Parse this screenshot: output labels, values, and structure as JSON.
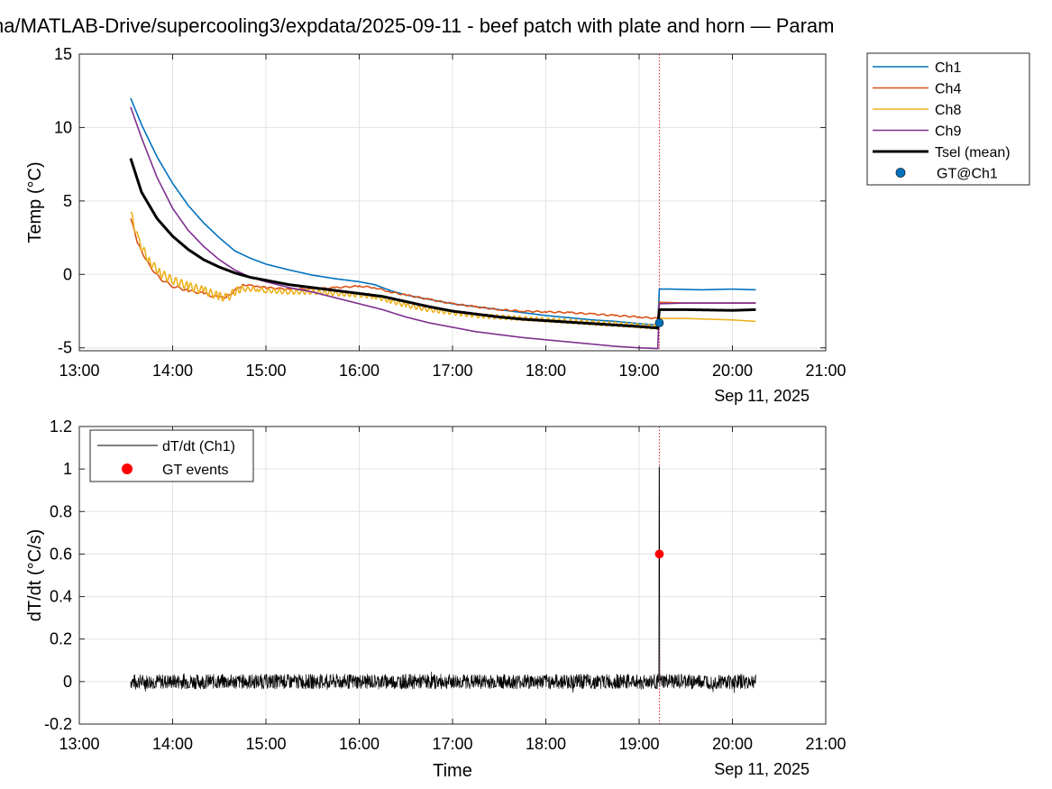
{
  "figure_title": "na/MATLAB-Drive/supercooling3/expdata/2025-09-11 - beef patch with plate and horn — Param",
  "chart_data": [
    {
      "type": "line",
      "ylabel": "Temp (°C)",
      "xlabel": "",
      "date_label": "Sep 11, 2025",
      "xlim": [
        "13:00",
        "21:00"
      ],
      "xticks": [
        "13:00",
        "14:00",
        "15:00",
        "16:00",
        "17:00",
        "18:00",
        "19:00",
        "20:00",
        "21:00"
      ],
      "ylim": [
        -5.2,
        15
      ],
      "yticks": [
        -5,
        0,
        5,
        10,
        15
      ],
      "grid": true,
      "legend_position": "outside-top-right",
      "event_time": "19:13",
      "series": [
        {
          "name": "Ch1",
          "color": "#0072BD",
          "width": 1.6,
          "points": [
            [
              "13:33",
              12.0
            ],
            [
              "13:40",
              10.2
            ],
            [
              "13:50",
              8.0
            ],
            [
              "14:00",
              6.2
            ],
            [
              "14:10",
              4.7
            ],
            [
              "14:20",
              3.5
            ],
            [
              "14:30",
              2.5
            ],
            [
              "14:40",
              1.6
            ],
            [
              "14:50",
              1.1
            ],
            [
              "15:00",
              0.7
            ],
            [
              "15:15",
              0.3
            ],
            [
              "15:30",
              -0.05
            ],
            [
              "15:45",
              -0.3
            ],
            [
              "16:00",
              -0.5
            ],
            [
              "16:10",
              -0.7
            ],
            [
              "16:20",
              -1.1
            ],
            [
              "16:30",
              -1.4
            ],
            [
              "16:45",
              -1.7
            ],
            [
              "17:00",
              -2.0
            ],
            [
              "17:15",
              -2.2
            ],
            [
              "17:30",
              -2.4
            ],
            [
              "17:45",
              -2.6
            ],
            [
              "18:00",
              -2.8
            ],
            [
              "18:15",
              -2.95
            ],
            [
              "18:30",
              -3.1
            ],
            [
              "18:45",
              -3.2
            ],
            [
              "19:00",
              -3.35
            ],
            [
              "19:12",
              -3.45
            ],
            [
              "19:13",
              -1.0
            ],
            [
              "19:20",
              -1.0
            ],
            [
              "19:40",
              -1.05
            ],
            [
              "20:00",
              -1.0
            ],
            [
              "20:15",
              -1.05
            ]
          ]
        },
        {
          "name": "Ch4",
          "color": "#D95319",
          "width": 1.6,
          "osc_amp": 0.08,
          "osc_period_min": 6,
          "points": [
            [
              "13:33",
              3.8
            ],
            [
              "13:38",
              2.0
            ],
            [
              "13:45",
              0.6
            ],
            [
              "13:52",
              -0.3
            ],
            [
              "14:00",
              -0.8
            ],
            [
              "14:10",
              -1.1
            ],
            [
              "14:20",
              -1.3
            ],
            [
              "14:30",
              -1.6
            ],
            [
              "14:35",
              -1.5
            ],
            [
              "14:45",
              -0.7
            ],
            [
              "14:55",
              -0.8
            ],
            [
              "15:00",
              -0.9
            ],
            [
              "15:15",
              -1.0
            ],
            [
              "15:30",
              -1.0
            ],
            [
              "15:45",
              -0.9
            ],
            [
              "16:00",
              -0.8
            ],
            [
              "16:10",
              -0.9
            ],
            [
              "16:20",
              -1.2
            ],
            [
              "16:30",
              -1.4
            ],
            [
              "16:45",
              -1.7
            ],
            [
              "17:00",
              -2.0
            ],
            [
              "17:15",
              -2.2
            ],
            [
              "17:30",
              -2.4
            ],
            [
              "17:45",
              -2.5
            ],
            [
              "18:00",
              -2.55
            ],
            [
              "18:15",
              -2.6
            ],
            [
              "18:30",
              -2.7
            ],
            [
              "18:45",
              -2.8
            ],
            [
              "19:00",
              -2.9
            ],
            [
              "19:12",
              -3.0
            ],
            [
              "19:13",
              -1.9
            ],
            [
              "19:30",
              -1.95
            ],
            [
              "20:00",
              -1.95
            ],
            [
              "20:15",
              -1.95
            ]
          ]
        },
        {
          "name": "Ch8",
          "color": "#EDB120",
          "width": 1.6,
          "osc_amp": 0.28,
          "osc_period_min": 3.5,
          "points": [
            [
              "13:33",
              4.2
            ],
            [
              "13:38",
              2.3
            ],
            [
              "13:45",
              0.9
            ],
            [
              "13:52",
              0.1
            ],
            [
              "14:00",
              -0.4
            ],
            [
              "14:10",
              -0.8
            ],
            [
              "14:20",
              -1.1
            ],
            [
              "14:30",
              -1.5
            ],
            [
              "14:35",
              -1.6
            ],
            [
              "14:42",
              -1.0
            ],
            [
              "14:55",
              -1.0
            ],
            [
              "15:00",
              -1.1
            ],
            [
              "15:15",
              -1.2
            ],
            [
              "15:30",
              -1.2
            ],
            [
              "15:45",
              -1.3
            ],
            [
              "16:00",
              -1.4
            ],
            [
              "16:10",
              -1.5
            ],
            [
              "16:20",
              -1.8
            ],
            [
              "16:30",
              -2.1
            ],
            [
              "16:45",
              -2.4
            ],
            [
              "17:00",
              -2.6
            ],
            [
              "17:15",
              -2.8
            ],
            [
              "17:30",
              -2.9
            ],
            [
              "17:45",
              -3.0
            ],
            [
              "18:00",
              -3.1
            ],
            [
              "18:15",
              -3.2
            ],
            [
              "18:30",
              -3.3
            ],
            [
              "18:45",
              -3.4
            ],
            [
              "19:00",
              -3.5
            ],
            [
              "19:12",
              -3.6
            ],
            [
              "19:13",
              -3.0
            ],
            [
              "19:30",
              -3.0
            ],
            [
              "20:00",
              -3.1
            ],
            [
              "20:15",
              -3.2
            ]
          ]
        },
        {
          "name": "Ch9",
          "color": "#7E2F8E",
          "width": 1.6,
          "points": [
            [
              "13:33",
              11.4
            ],
            [
              "13:40",
              9.3
            ],
            [
              "13:50",
              6.6
            ],
            [
              "14:00",
              4.5
            ],
            [
              "14:10",
              3.0
            ],
            [
              "14:20",
              1.9
            ],
            [
              "14:30",
              1.0
            ],
            [
              "14:40",
              0.3
            ],
            [
              "14:50",
              -0.2
            ],
            [
              "15:00",
              -0.5
            ],
            [
              "15:15",
              -0.9
            ],
            [
              "15:30",
              -1.2
            ],
            [
              "15:45",
              -1.6
            ],
            [
              "16:00",
              -2.0
            ],
            [
              "16:15",
              -2.4
            ],
            [
              "16:30",
              -2.9
            ],
            [
              "16:45",
              -3.3
            ],
            [
              "17:00",
              -3.6
            ],
            [
              "17:15",
              -3.9
            ],
            [
              "17:30",
              -4.1
            ],
            [
              "17:45",
              -4.3
            ],
            [
              "18:00",
              -4.45
            ],
            [
              "18:15",
              -4.6
            ],
            [
              "18:30",
              -4.75
            ],
            [
              "18:45",
              -4.9
            ],
            [
              "19:00",
              -5.0
            ],
            [
              "19:12",
              -5.05
            ],
            [
              "19:13",
              -2.0
            ],
            [
              "19:30",
              -1.95
            ],
            [
              "20:00",
              -1.95
            ],
            [
              "20:15",
              -1.95
            ]
          ]
        },
        {
          "name": "Tsel (mean)",
          "color": "#000000",
          "width": 3,
          "points": [
            [
              "13:33",
              7.9
            ],
            [
              "13:40",
              5.6
            ],
            [
              "13:50",
              3.8
            ],
            [
              "14:00",
              2.6
            ],
            [
              "14:10",
              1.7
            ],
            [
              "14:20",
              1.0
            ],
            [
              "14:30",
              0.5
            ],
            [
              "14:40",
              0.1
            ],
            [
              "14:50",
              -0.2
            ],
            [
              "15:00",
              -0.4
            ],
            [
              "15:15",
              -0.7
            ],
            [
              "15:30",
              -0.9
            ],
            [
              "15:45",
              -1.1
            ],
            [
              "16:00",
              -1.3
            ],
            [
              "16:15",
              -1.5
            ],
            [
              "16:30",
              -1.85
            ],
            [
              "16:45",
              -2.2
            ],
            [
              "17:00",
              -2.5
            ],
            [
              "17:15",
              -2.7
            ],
            [
              "17:30",
              -2.9
            ],
            [
              "17:45",
              -3.05
            ],
            [
              "18:00",
              -3.15
            ],
            [
              "18:15",
              -3.25
            ],
            [
              "18:30",
              -3.35
            ],
            [
              "18:45",
              -3.45
            ],
            [
              "19:00",
              -3.55
            ],
            [
              "19:12",
              -3.65
            ],
            [
              "19:13",
              -2.4
            ],
            [
              "19:30",
              -2.4
            ],
            [
              "20:00",
              -2.45
            ],
            [
              "20:15",
              -2.4
            ]
          ]
        }
      ],
      "markers": [
        {
          "name": "GT@Ch1",
          "color": "#0072BD",
          "edge": "#1a2a3a",
          "points": [
            [
              "19:13",
              -3.3
            ]
          ]
        }
      ]
    },
    {
      "type": "line",
      "ylabel": "dT/dt (°C/s)",
      "xlabel": "Time",
      "date_label": "Sep 11, 2025",
      "xlim": [
        "13:00",
        "21:00"
      ],
      "xticks": [
        "13:00",
        "14:00",
        "15:00",
        "16:00",
        "17:00",
        "18:00",
        "19:00",
        "20:00",
        "21:00"
      ],
      "ylim": [
        -0.2,
        1.2
      ],
      "yticks": [
        -0.2,
        0,
        0.2,
        0.4,
        0.6,
        0.8,
        1,
        1.2
      ],
      "ytick_labels": [
        "-0.2",
        "0",
        "0.2",
        "0.4",
        "0.6",
        "0.8",
        "1",
        "1.2"
      ],
      "grid": true,
      "legend_position": "top-left",
      "event_time": "19:13",
      "series": [
        {
          "name": "dT/dt (Ch1)",
          "color": "#000000",
          "width": 0.7,
          "noise_amp": 0.035,
          "range": [
            "13:33",
            "20:15"
          ],
          "points": [
            [
              "13:33",
              0
            ],
            [
              "19:12",
              0
            ],
            [
              "19:13",
              1.01
            ],
            [
              "19:13",
              0
            ],
            [
              "20:15",
              0
            ]
          ]
        }
      ],
      "markers": [
        {
          "name": "GT events",
          "color": "#FF0000",
          "edge": "#FF0000",
          "points": [
            [
              "19:13",
              0.6
            ]
          ]
        }
      ]
    }
  ]
}
